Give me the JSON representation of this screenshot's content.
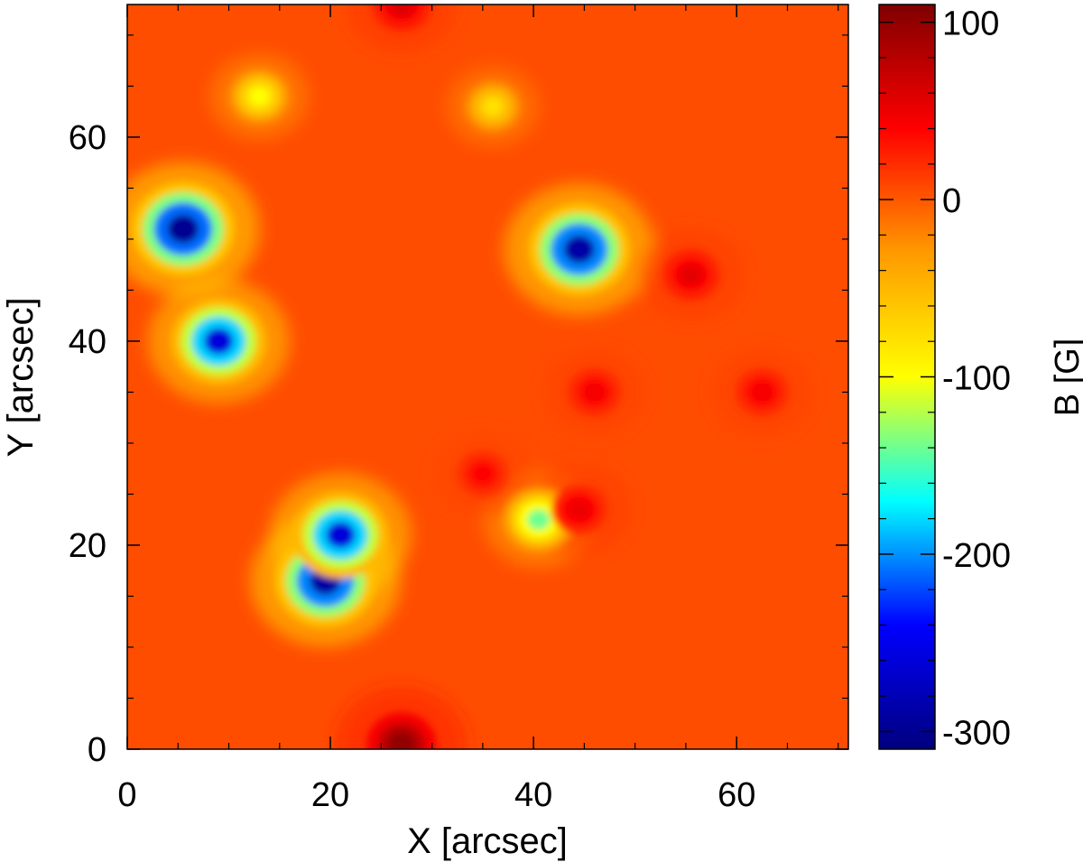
{
  "chart_data": {
    "type": "heatmap",
    "title": "",
    "xlabel": "X [arcsec]",
    "ylabel": "Y [arcsec]",
    "xlim": [
      0,
      71
    ],
    "ylim": [
      0,
      73
    ],
    "x_ticks": [
      "0",
      "20",
      "40",
      "60"
    ],
    "y_ticks": [
      "0",
      "20",
      "40",
      "60"
    ],
    "colorbar": {
      "label": "B [G]",
      "range": [
        -310,
        110
      ],
      "ticks": [
        "100",
        "0",
        "-100",
        "-200",
        "-300"
      ],
      "colormap": "rainbow (dark blue → cyan → yellow → orange → dark red)",
      "colormap_stops": [
        "#00007f",
        "#0000ff",
        "#00ffff",
        "#ffff00",
        "#ff9a00",
        "#ff0000",
        "#800000"
      ]
    },
    "background_value": 5,
    "features": [
      {
        "polarity": "negative",
        "x": 5.5,
        "y": 51,
        "peak": -300
      },
      {
        "polarity": "negative",
        "x": 9,
        "y": 40,
        "peak": -260
      },
      {
        "polarity": "negative",
        "x": 44.5,
        "y": 49,
        "peak": -290
      },
      {
        "polarity": "negative",
        "x": 19.5,
        "y": 16.5,
        "peak": -290
      },
      {
        "polarity": "negative",
        "x": 21,
        "y": 21,
        "peak": -260
      },
      {
        "polarity": "negative",
        "x": 40.5,
        "y": 22.5,
        "peak": -140
      },
      {
        "polarity": "negative",
        "x": 13,
        "y": 64,
        "peak": -100
      },
      {
        "polarity": "negative",
        "x": 36,
        "y": 63,
        "peak": -80
      },
      {
        "polarity": "positive",
        "x": 27,
        "y": 0.5,
        "peak": 100
      },
      {
        "polarity": "positive",
        "x": 27,
        "y": 73,
        "peak": 60
      },
      {
        "polarity": "positive",
        "x": 55.5,
        "y": 46.5,
        "peak": 55
      },
      {
        "polarity": "positive",
        "x": 62.5,
        "y": 35,
        "peak": 45
      },
      {
        "polarity": "positive",
        "x": 44.5,
        "y": 23.5,
        "peak": 50
      },
      {
        "polarity": "positive",
        "x": 35,
        "y": 27,
        "peak": 40
      },
      {
        "polarity": "positive",
        "x": 46,
        "y": 35,
        "peak": 45
      }
    ]
  }
}
